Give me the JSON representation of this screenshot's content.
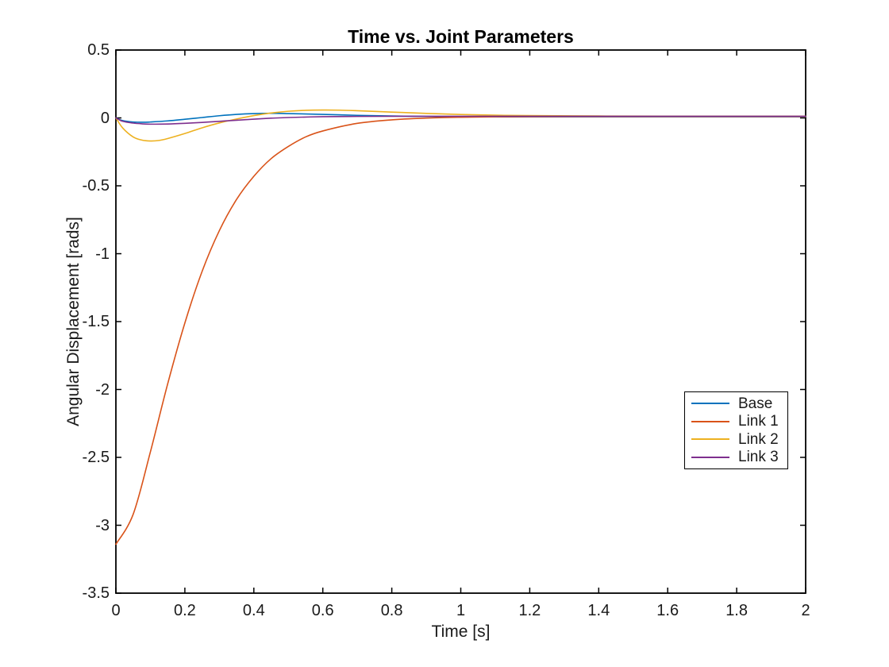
{
  "figure": {
    "background": "#ffffff",
    "axis_color": "#000000",
    "label_color": "#1a1a1a"
  },
  "chart_data": {
    "type": "line",
    "title": "Time vs. Joint Parameters",
    "xlabel": "Time [s]",
    "ylabel": "Angular Displacement [rads]",
    "xlim": [
      0,
      2
    ],
    "ylim": [
      -3.5,
      0.5
    ],
    "xticks": [
      0,
      0.2,
      0.4,
      0.6,
      0.8,
      1,
      1.2,
      1.4,
      1.6,
      1.8,
      2
    ],
    "xtick_labels": [
      "0",
      "0.2",
      "0.4",
      "0.6",
      "0.8",
      "1",
      "1.2",
      "1.4",
      "1.6",
      "1.8",
      "2"
    ],
    "yticks": [
      0.5,
      0,
      -0.5,
      -1,
      -1.5,
      -2,
      -2.5,
      -3,
      -3.5
    ],
    "ytick_labels": [
      "0.5",
      "0",
      "-0.5",
      "-1",
      "-1.5",
      "-2",
      "-2.5",
      "-3",
      "-3.5"
    ],
    "grid": false,
    "legend": {
      "position": "right-middle",
      "background": "#ffffff",
      "border_color": "#000000"
    },
    "series": [
      {
        "name": "Base",
        "color": "#0072BD",
        "x": [
          0,
          0.02,
          0.05,
          0.08,
          0.1,
          0.15,
          0.2,
          0.25,
          0.3,
          0.35,
          0.4,
          0.45,
          0.5,
          0.6,
          0.7,
          0.8,
          0.9,
          1,
          1.1,
          1.2,
          1.4,
          1.6,
          1.8,
          2
        ],
        "y": [
          0,
          -0.02,
          -0.03,
          -0.032,
          -0.03,
          -0.022,
          -0.01,
          0.003,
          0.016,
          0.026,
          0.032,
          0.034,
          0.032,
          0.026,
          0.019,
          0.014,
          0.011,
          0.009,
          0.008,
          0.008,
          0.008,
          0.008,
          0.008,
          0.008
        ]
      },
      {
        "name": "Link 1",
        "color": "#D95319",
        "x": [
          0,
          0.05,
          0.1,
          0.15,
          0.2,
          0.25,
          0.3,
          0.35,
          0.4,
          0.45,
          0.5,
          0.55,
          0.6,
          0.7,
          0.8,
          0.9,
          1,
          1.1,
          1.2,
          1.4,
          1.6,
          1.8,
          2
        ],
        "y": [
          -3.14,
          -2.92,
          -2.46,
          -1.96,
          -1.51,
          -1.13,
          -0.83,
          -0.6,
          -0.43,
          -0.3,
          -0.21,
          -0.14,
          -0.096,
          -0.04,
          -0.014,
          -0.001,
          0.005,
          0.008,
          0.009,
          0.01,
          0.01,
          0.01,
          0.01
        ]
      },
      {
        "name": "Link 2",
        "color": "#EDB120",
        "x": [
          0,
          0.02,
          0.05,
          0.075,
          0.1,
          0.125,
          0.15,
          0.2,
          0.25,
          0.3,
          0.35,
          0.4,
          0.45,
          0.5,
          0.55,
          0.6,
          0.65,
          0.7,
          0.8,
          0.9,
          1,
          1.1,
          1.2,
          1.4,
          1.6,
          1.8,
          2
        ],
        "y": [
          0,
          -0.075,
          -0.14,
          -0.163,
          -0.17,
          -0.166,
          -0.152,
          -0.115,
          -0.073,
          -0.037,
          -0.008,
          0.017,
          0.036,
          0.049,
          0.056,
          0.058,
          0.057,
          0.053,
          0.043,
          0.033,
          0.025,
          0.02,
          0.017,
          0.014,
          0.013,
          0.013,
          0.013
        ]
      },
      {
        "name": "Link 3",
        "color": "#7E2F8E",
        "x": [
          0,
          0.02,
          0.05,
          0.08,
          0.1,
          0.15,
          0.2,
          0.25,
          0.3,
          0.35,
          0.4,
          0.45,
          0.5,
          0.6,
          0.7,
          0.8,
          0.9,
          1,
          1.1,
          1.2,
          1.4,
          1.6,
          1.8,
          2
        ],
        "y": [
          0,
          -0.025,
          -0.038,
          -0.044,
          -0.046,
          -0.045,
          -0.04,
          -0.033,
          -0.025,
          -0.017,
          -0.009,
          -0.002,
          0.003,
          0.009,
          0.011,
          0.012,
          0.012,
          0.012,
          0.012,
          0.012,
          0.012,
          0.012,
          0.012,
          0.012
        ]
      }
    ]
  }
}
